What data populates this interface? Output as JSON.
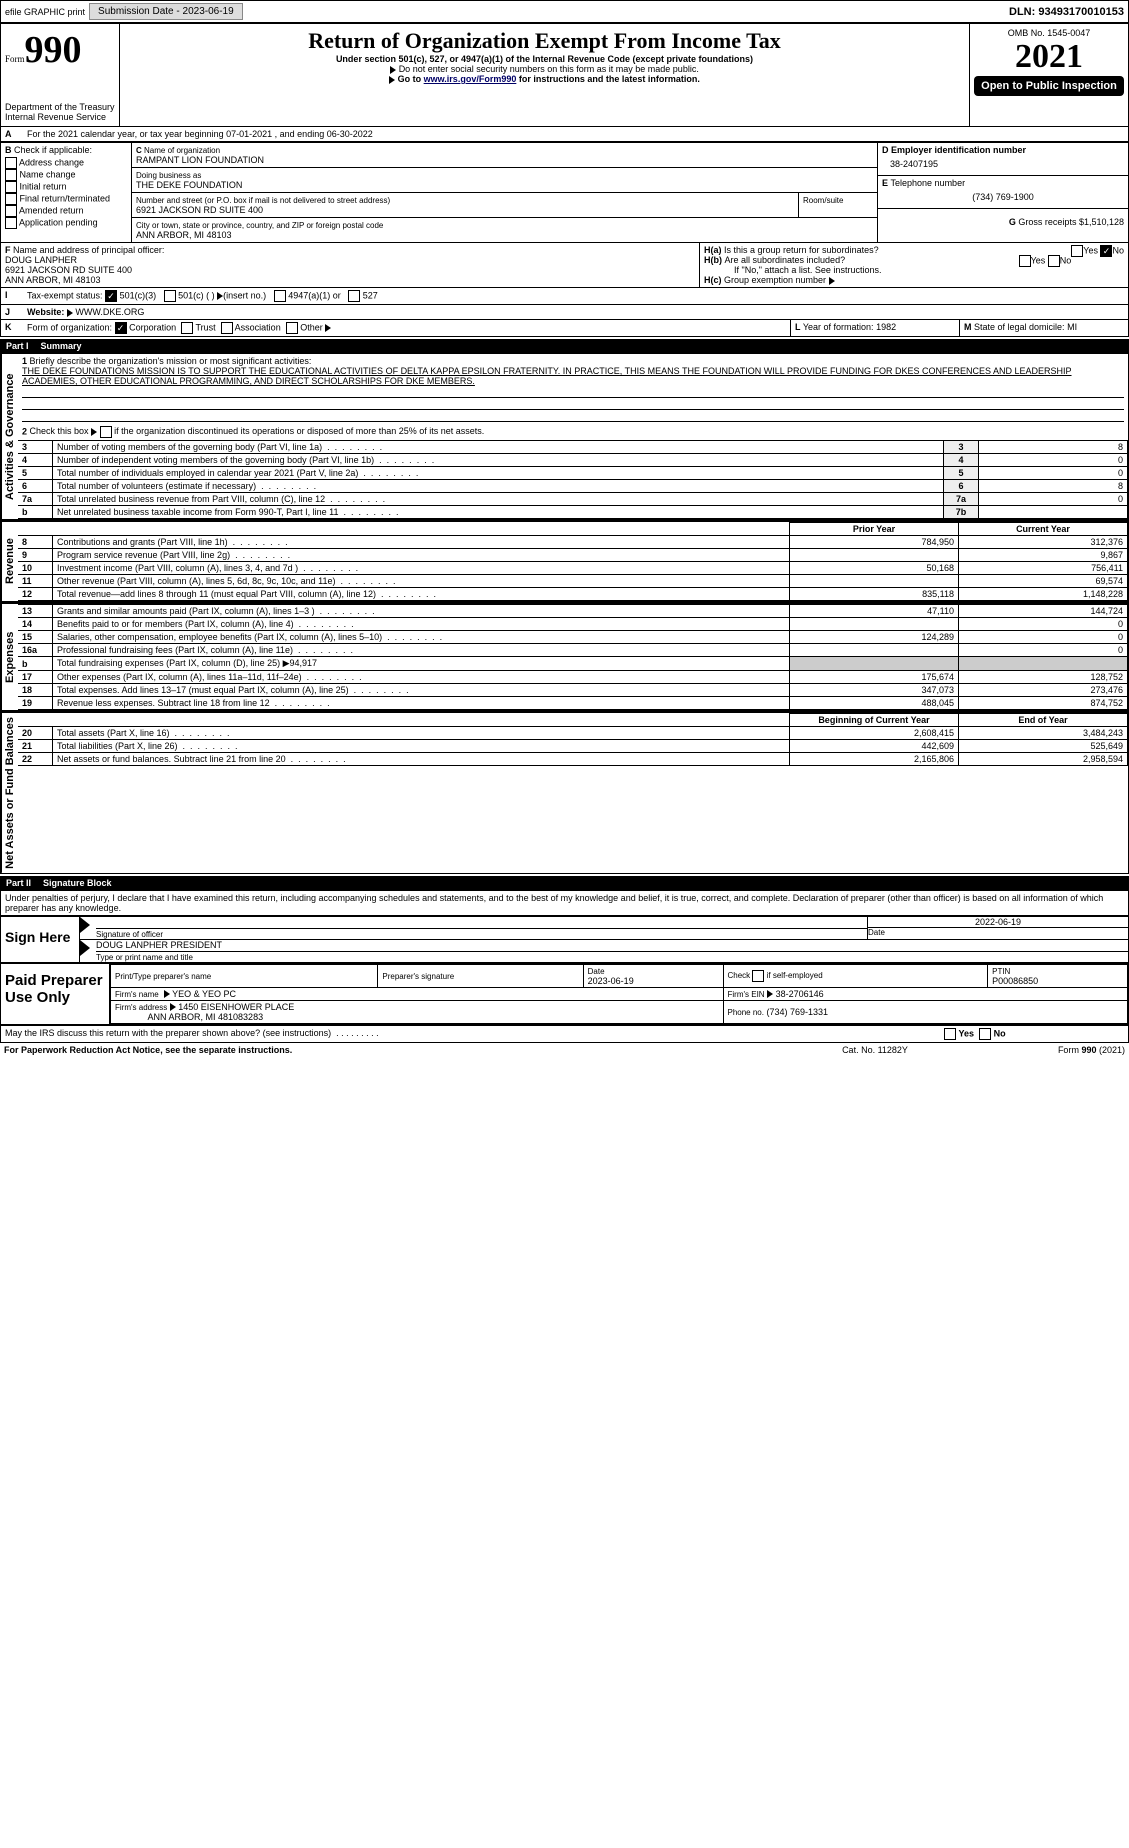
{
  "topbar": {
    "efile": "efile GRAPHIC print",
    "submission": "Submission Date - 2023-06-19",
    "dln": "DLN: 93493170010153"
  },
  "header": {
    "form": "Form",
    "num": "990",
    "dept": "Department of the Treasury",
    "irs": "Internal Revenue Service",
    "title": "Return of Organization Exempt From Income Tax",
    "sub1": "Under section 501(c), 527, or 4947(a)(1) of the Internal Revenue Code (except private foundations)",
    "sub2": "Do not enter social security numbers on this form as it may be made public.",
    "sub3": "Go to ",
    "sub3link": "www.irs.gov/Form990",
    "sub3b": " for instructions and the latest information.",
    "omb": "OMB No. 1545-0047",
    "year": "2021",
    "open": "Open to Public Inspection"
  },
  "a": {
    "line": "For the 2021 calendar year, or tax year beginning 07-01-2021    , and ending 06-30-2022"
  },
  "b": {
    "label": "Check if applicable:",
    "opts": [
      "Address change",
      "Name change",
      "Initial return",
      "Final return/terminated",
      "Amended return",
      "Application pending"
    ]
  },
  "c": {
    "label": "Name of organization",
    "name": "RAMPANT LION FOUNDATION",
    "dba_label": "Doing business as",
    "dba": "THE DEKE FOUNDATION",
    "street_label": "Number and street (or P.O. box if mail is not delivered to street address)",
    "room_label": "Room/suite",
    "street": "6921 JACKSON RD SUITE 400",
    "city_label": "City or town, state or province, country, and ZIP or foreign postal code",
    "city": "ANN ARBOR, MI  48103"
  },
  "d": {
    "label": "Employer identification number",
    "val": "38-2407195"
  },
  "e": {
    "label": "Telephone number",
    "val": "(734) 769-1900"
  },
  "g": {
    "label": "Gross receipts $",
    "val": "1,510,128"
  },
  "f": {
    "label": "Name and address of principal officer:",
    "name": "DOUG LANPHER",
    "addr1": "6921 JACKSON RD SUITE 400",
    "addr2": "ANN ARBOR, MI  48103"
  },
  "h": {
    "a": "Is this a group return for subordinates?",
    "b": "Are all subordinates included?",
    "note": "If \"No,\" attach a list. See instructions.",
    "c": "Group exemption number"
  },
  "i": {
    "label": "Tax-exempt status:",
    "o1": "501(c)(3)",
    "o2": "501(c) (  )",
    "o2b": "(insert no.)",
    "o3": "4947(a)(1) or",
    "o4": "527"
  },
  "j": {
    "label": "Website:",
    "val": "WWW.DKE.ORG"
  },
  "k": {
    "label": "Form of organization:",
    "o1": "Corporation",
    "o2": "Trust",
    "o3": "Association",
    "o4": "Other"
  },
  "l": {
    "label": "Year of formation:",
    "val": "1982"
  },
  "m": {
    "label": "State of legal domicile:",
    "val": "MI"
  },
  "part1": {
    "num": "Part I",
    "title": "Summary"
  },
  "mission": {
    "label": "Briefly describe the organization's mission or most significant activities:",
    "text": "THE DEKE FOUNDATIONS MISSION IS TO SUPPORT THE EDUCATIONAL ACTIVITIES OF DELTA KAPPA EPSILON FRATERNITY. IN PRACTICE, THIS MEANS THE FOUNDATION WILL PROVIDE FUNDING FOR DKES CONFERENCES AND LEADERSHIP ACADEMIES, OTHER EDUCATIONAL PROGRAMMING, AND DIRECT SCHOLARSHIPS FOR DKE MEMBERS."
  },
  "gov": {
    "vert": "Activities & Governance",
    "l2": "Check this box      if the organization discontinued its operations or disposed of more than 25% of its net assets.",
    "rows": [
      {
        "n": "3",
        "t": "Number of voting members of the governing body (Part VI, line 1a)",
        "c": "3",
        "v": "8"
      },
      {
        "n": "4",
        "t": "Number of independent voting members of the governing body (Part VI, line 1b)",
        "c": "4",
        "v": "0"
      },
      {
        "n": "5",
        "t": "Total number of individuals employed in calendar year 2021 (Part V, line 2a)",
        "c": "5",
        "v": "0"
      },
      {
        "n": "6",
        "t": "Total number of volunteers (estimate if necessary)",
        "c": "6",
        "v": "8"
      },
      {
        "n": "7a",
        "t": "Total unrelated business revenue from Part VIII, column (C), line 12",
        "c": "7a",
        "v": "0"
      },
      {
        "n": "b",
        "t": "Net unrelated business taxable income from Form 990-T, Part I, line 11",
        "c": "7b",
        "v": ""
      }
    ]
  },
  "rev": {
    "vert": "Revenue",
    "h1": "Prior Year",
    "h2": "Current Year",
    "rows": [
      {
        "n": "8",
        "t": "Contributions and grants (Part VIII, line 1h)",
        "p": "784,950",
        "c": "312,376"
      },
      {
        "n": "9",
        "t": "Program service revenue (Part VIII, line 2g)",
        "p": "",
        "c": "9,867"
      },
      {
        "n": "10",
        "t": "Investment income (Part VIII, column (A), lines 3, 4, and 7d )",
        "p": "50,168",
        "c": "756,411"
      },
      {
        "n": "11",
        "t": "Other revenue (Part VIII, column (A), lines 5, 6d, 8c, 9c, 10c, and 11e)",
        "p": "",
        "c": "69,574"
      },
      {
        "n": "12",
        "t": "Total revenue—add lines 8 through 11 (must equal Part VIII, column (A), line 12)",
        "p": "835,118",
        "c": "1,148,228"
      }
    ]
  },
  "exp": {
    "vert": "Expenses",
    "rows": [
      {
        "n": "13",
        "t": "Grants and similar amounts paid (Part IX, column (A), lines 1–3 )",
        "p": "47,110",
        "c": "144,724"
      },
      {
        "n": "14",
        "t": "Benefits paid to or for members (Part IX, column (A), line 4)",
        "p": "",
        "c": "0"
      },
      {
        "n": "15",
        "t": "Salaries, other compensation, employee benefits (Part IX, column (A), lines 5–10)",
        "p": "124,289",
        "c": "0"
      },
      {
        "n": "16a",
        "t": "Professional fundraising fees (Part IX, column (A), line 11e)",
        "p": "",
        "c": "0"
      },
      {
        "n": "b",
        "t": "Total fundraising expenses (Part IX, column (D), line 25) ▶94,917",
        "p": "shade",
        "c": "shade"
      },
      {
        "n": "17",
        "t": "Other expenses (Part IX, column (A), lines 11a–11d, 11f–24e)",
        "p": "175,674",
        "c": "128,752"
      },
      {
        "n": "18",
        "t": "Total expenses. Add lines 13–17 (must equal Part IX, column (A), line 25)",
        "p": "347,073",
        "c": "273,476"
      },
      {
        "n": "19",
        "t": "Revenue less expenses. Subtract line 18 from line 12",
        "p": "488,045",
        "c": "874,752"
      }
    ]
  },
  "net": {
    "vert": "Net Assets or Fund Balances",
    "h1": "Beginning of Current Year",
    "h2": "End of Year",
    "rows": [
      {
        "n": "20",
        "t": "Total assets (Part X, line 16)",
        "p": "2,608,415",
        "c": "3,484,243"
      },
      {
        "n": "21",
        "t": "Total liabilities (Part X, line 26)",
        "p": "442,609",
        "c": "525,649"
      },
      {
        "n": "22",
        "t": "Net assets or fund balances. Subtract line 21 from line 20",
        "p": "2,165,806",
        "c": "2,958,594"
      }
    ]
  },
  "part2": {
    "num": "Part II",
    "title": "Signature Block"
  },
  "sig": {
    "decl": "Under penalties of perjury, I declare that I have examined this return, including accompanying schedules and statements, and to the best of my knowledge and belief, it is true, correct, and complete. Declaration of preparer (other than officer) is based on all information of which preparer has any knowledge.",
    "sign_here": "Sign Here",
    "so": "Signature of officer",
    "date": "Date",
    "date_val": "2022-06-19",
    "name": "DOUG LANPHER  PRESIDENT",
    "name_label": "Type or print name and title"
  },
  "prep": {
    "title": "Paid Preparer Use Only",
    "h1": "Print/Type preparer's name",
    "h2": "Preparer's signature",
    "h3": "Date",
    "h3v": "2023-06-19",
    "h4": "Check      if self-employed",
    "h5": "PTIN",
    "h5v": "P00086850",
    "firm_label": "Firm's name",
    "firm": "YEO & YEO PC",
    "ein_label": "Firm's EIN",
    "ein": "38-2706146",
    "addr_label": "Firm's address",
    "addr": "1450 EISENHOWER PLACE",
    "addr2": "ANN ARBOR, MI  481083283",
    "phone_label": "Phone no.",
    "phone": "(734) 769-1331"
  },
  "foot": {
    "q": "May the IRS discuss this return with the preparer shown above? (see instructions)",
    "pra": "For Paperwork Reduction Act Notice, see the separate instructions.",
    "cat": "Cat. No. 11282Y",
    "form": "Form 990 (2021)"
  },
  "yes": "Yes",
  "no": "No"
}
